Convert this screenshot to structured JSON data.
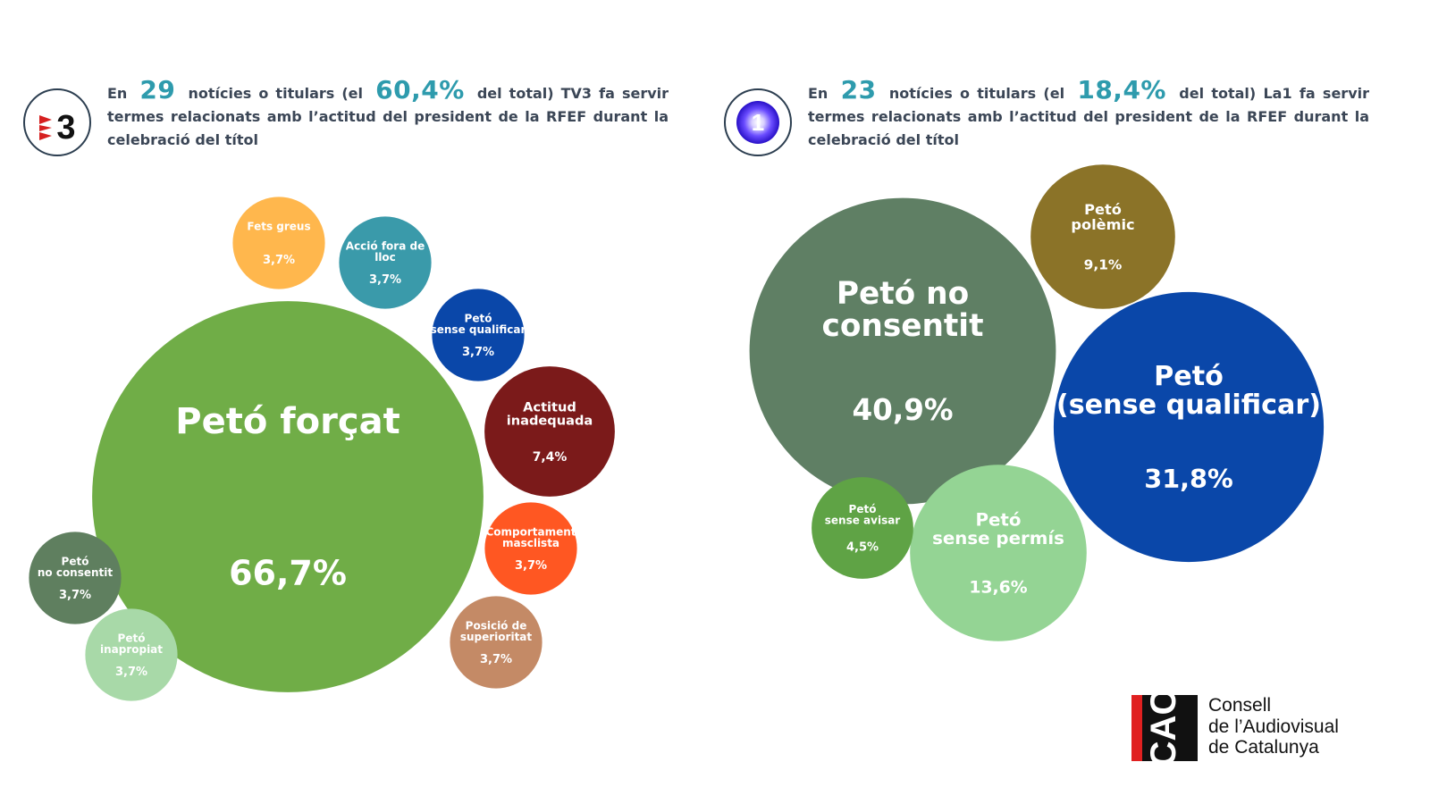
{
  "panels": [
    {
      "id": "tv3",
      "logo_text": "3",
      "headline": {
        "pre": "En",
        "count": "29",
        "mid": "notícies o titulars (el",
        "pct": "60,4%",
        "post": "del total) TV3 fa servir termes relacionats amb l’actitud del president de la RFEF durant la celebració del títol"
      }
    },
    {
      "id": "la1",
      "logo_text": "1",
      "headline": {
        "pre": "En",
        "count": "23",
        "mid": "notícies o titulars (el",
        "pct": "18,4%",
        "post": "del total) La1 fa servir termes relacionats amb l’actitud del president de la RFEF durant la celebració del títol"
      }
    }
  ],
  "chart_data": [
    {
      "type": "bubble",
      "title": "",
      "categories": [
        "Petó forçat",
        "Actitud inadequada",
        "Fets greus",
        "Acció fora de lloc",
        "Petó (sense qualificar)",
        "Comportament masclista",
        "Posició de superioritat",
        "Petó no consentit",
        "Petó inapropiat"
      ],
      "values": [
        66.7,
        7.4,
        3.7,
        3.7,
        3.7,
        3.7,
        3.7,
        3.7,
        3.7
      ],
      "series": [
        {
          "label": [
            "Petó forçat"
          ],
          "value_label": "66,7%",
          "value": 66.7,
          "color": "#70ad47"
        },
        {
          "label": [
            "Actitud",
            "inadequada"
          ],
          "value_label": "7,4%",
          "value": 7.4,
          "color": "#7b1a1a"
        },
        {
          "label": [
            "Fets greus"
          ],
          "value_label": "3,7%",
          "value": 3.7,
          "color": "#ffb74d"
        },
        {
          "label": [
            "Acció fora de",
            "lloc"
          ],
          "value_label": "3,7%",
          "value": 3.7,
          "color": "#3a9aaa"
        },
        {
          "label": [
            "Petó",
            "(sense qualificar)"
          ],
          "value_label": "3,7%",
          "value": 3.7,
          "color": "#0a47a9"
        },
        {
          "label": [
            "Comportament",
            "masclista"
          ],
          "value_label": "3,7%",
          "value": 3.7,
          "color": "#ff5722"
        },
        {
          "label": [
            "Posició de",
            "superioritat"
          ],
          "value_label": "3,7%",
          "value": 3.7,
          "color": "#c48a66"
        },
        {
          "label": [
            "Petó",
            "no consentit"
          ],
          "value_label": "3,7%",
          "value": 3.7,
          "color": "#5f7f5f"
        },
        {
          "label": [
            "Petó",
            "inapropiat"
          ],
          "value_label": "3,7%",
          "value": 3.7,
          "color": "#a8d9a8"
        }
      ]
    },
    {
      "type": "bubble",
      "title": "",
      "categories": [
        "Petó no consentit",
        "Petó (sense qualificar)",
        "Petó sense permís",
        "Petó polèmic",
        "Petó sense avisar"
      ],
      "values": [
        40.9,
        31.8,
        13.6,
        9.1,
        4.5
      ],
      "series": [
        {
          "label": [
            "Petó no",
            "consentit"
          ],
          "value_label": "40,9%",
          "value": 40.9,
          "color": "#5f7f64"
        },
        {
          "label": [
            "Petó",
            "(sense qualificar)"
          ],
          "value_label": "31,8%",
          "value": 31.8,
          "color": "#0a47a9"
        },
        {
          "label": [
            "Petó",
            "sense permís"
          ],
          "value_label": "13,6%",
          "value": 13.6,
          "color": "#94d494"
        },
        {
          "label": [
            "Petó",
            "polèmic"
          ],
          "value_label": "9,1%",
          "value": 9.1,
          "color": "#8b7328"
        },
        {
          "label": [
            "Petó",
            "sense avisar"
          ],
          "value_label": "4,5%",
          "value": 4.5,
          "color": "#5fa345"
        }
      ]
    }
  ],
  "footer": {
    "logo_text": "CAC",
    "org_lines": [
      "Consell",
      "de l’Audiovisual",
      "de Catalunya"
    ]
  }
}
